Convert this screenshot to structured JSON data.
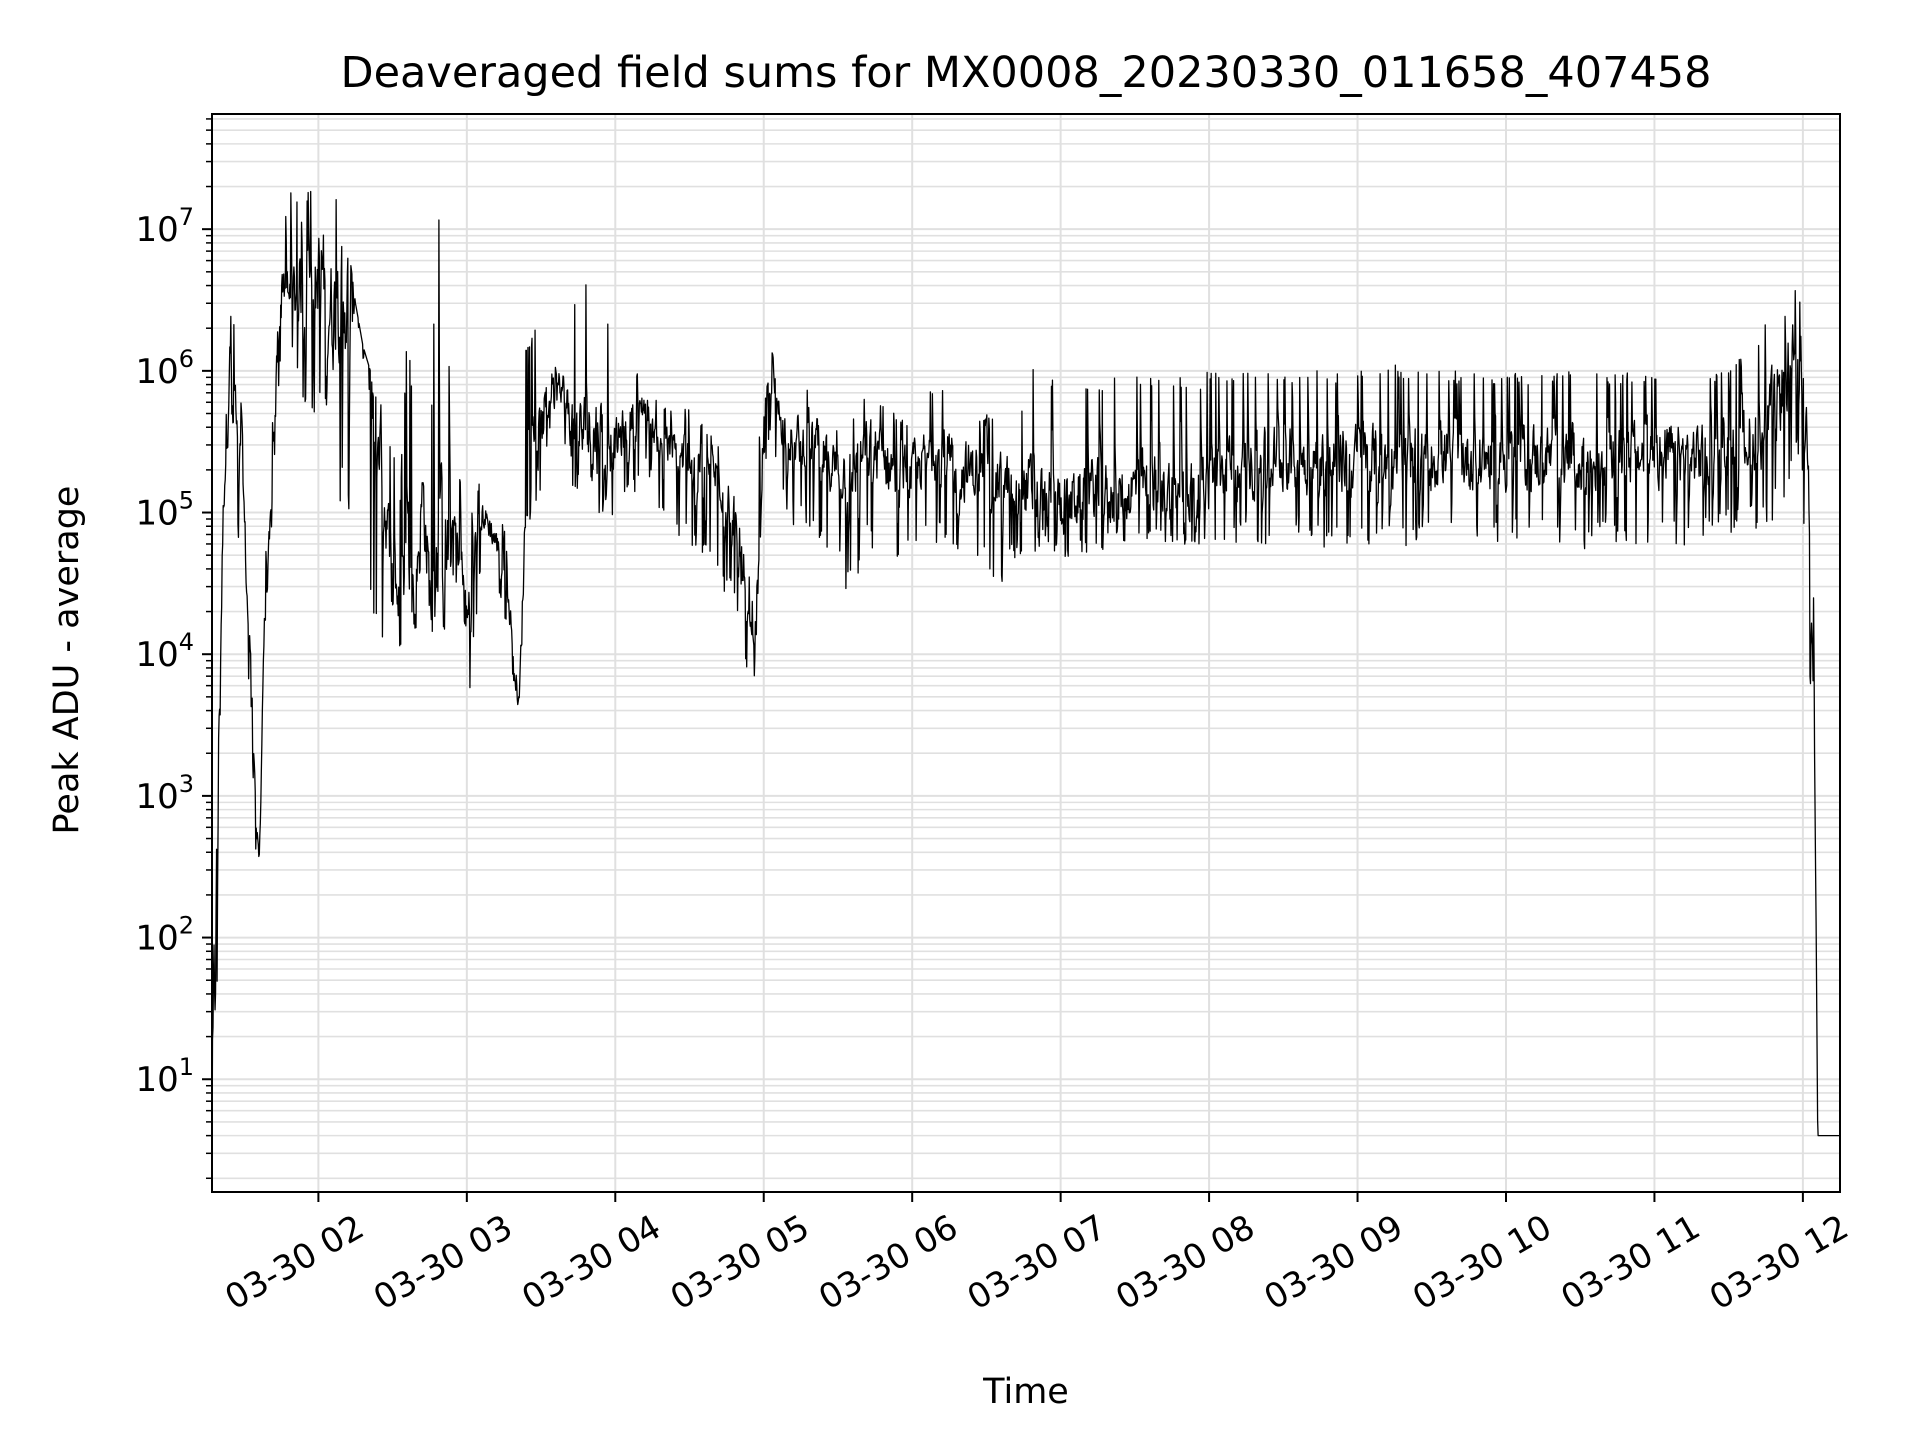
{
  "chart_data": {
    "type": "line",
    "title": "Deaveraged field sums for MX0008_20230330_011658_407458",
    "xlabel": "Time",
    "ylabel": "Peak ADU - average",
    "yscale": "log",
    "ylim": [
      1.6,
      65000000
    ],
    "xlim": [
      "03-30 01:17",
      "03-30 12:15"
    ],
    "x_tick_labels": [
      "03-30 02",
      "03-30 03",
      "03-30 04",
      "03-30 05",
      "03-30 06",
      "03-30 07",
      "03-30 08",
      "03-30 09",
      "03-30 10",
      "03-30 11",
      "03-30 12"
    ],
    "x_tick_hours": [
      2,
      3,
      4,
      5,
      6,
      7,
      8,
      9,
      10,
      11,
      12
    ],
    "y_tick_base": "10",
    "y_tick_exponents": [
      "1",
      "2",
      "3",
      "4",
      "5",
      "6",
      "7"
    ],
    "grid": true,
    "line_color": "#000000",
    "grid_color": "#e0e0e0",
    "series": [
      {
        "x_hours": [
          1.2833,
          1.31,
          1.33,
          1.36,
          1.38,
          1.4,
          1.42,
          1.44,
          1.46,
          1.48,
          1.5,
          1.52,
          1.55,
          1.58,
          1.6,
          1.63,
          1.65,
          1.67,
          1.7,
          1.72,
          1.74,
          1.76,
          1.78,
          1.8,
          1.82,
          1.84,
          1.86,
          1.88,
          1.9,
          1.92,
          1.95,
          1.98,
          2.02,
          2.06,
          2.1,
          2.15,
          2.2,
          2.25,
          2.3,
          2.35,
          2.4,
          2.45,
          2.5,
          2.55,
          2.6,
          2.65,
          2.7,
          2.75,
          2.8,
          2.85,
          2.9,
          2.95,
          3.0,
          3.05,
          3.1,
          3.15,
          3.2,
          3.25,
          3.3,
          3.35,
          3.4,
          3.45,
          3.5,
          3.6,
          3.7,
          3.8,
          3.9,
          4.0,
          4.1,
          4.2,
          4.3,
          4.4,
          4.5,
          4.6,
          4.7,
          4.8,
          4.85,
          4.9,
          4.93,
          4.96,
          5.0,
          5.05,
          5.1,
          5.2,
          5.3,
          5.4,
          5.5,
          5.6,
          5.7,
          5.8,
          5.9,
          6.0,
          6.1,
          6.2,
          6.3,
          6.4,
          6.5,
          6.6,
          6.7,
          6.8,
          6.9,
          7.0,
          7.1,
          7.2,
          7.3,
          7.4,
          7.5,
          7.6,
          7.7,
          7.8,
          7.9,
          8.0,
          8.25,
          8.5,
          8.75,
          9.0,
          9.25,
          9.5,
          9.75,
          10.0,
          10.25,
          10.5,
          10.75,
          11.0,
          11.25,
          11.5,
          11.75,
          11.9,
          11.97,
          12.0,
          12.03,
          12.07,
          12.1,
          12.12,
          12.15,
          12.2,
          12.25
        ],
        "y_mid": [
          4,
          180,
          5000,
          150000,
          400000,
          1500000,
          300000,
          500000,
          150000,
          400000,
          80000,
          20000,
          8000,
          600,
          300,
          15000,
          25000,
          60000,
          200000,
          1500000,
          3000000,
          5000000,
          4000000,
          2500000,
          6000000,
          3000000,
          5000000,
          4000000,
          3000000,
          5000000,
          3000000,
          4000000,
          6000000,
          3000000,
          2500000,
          4000000,
          3000000,
          6000000,
          4000000,
          1000000,
          500000,
          100000,
          40000,
          20000,
          60000,
          30000,
          150000,
          25000,
          80000,
          40000,
          100000,
          50000,
          15000,
          60000,
          100000,
          80000,
          60000,
          40000,
          15000,
          4000,
          200000,
          300000,
          400000,
          1200000,
          400000,
          350000,
          350000,
          300000,
          450000,
          600000,
          300000,
          250000,
          250000,
          200000,
          180000,
          100000,
          30000,
          15000,
          8000,
          50000,
          500000,
          1000000,
          500000,
          300000,
          350000,
          250000,
          200000,
          200000,
          300000,
          250000,
          180000,
          200000,
          250000,
          300000,
          180000,
          200000,
          200000,
          160000,
          160000,
          140000,
          120000,
          120000,
          130000,
          150000,
          140000,
          130000,
          150000,
          160000,
          150000,
          140000,
          150000,
          160000,
          220000,
          250000,
          230000,
          240000,
          230000,
          250000,
          240000,
          240000,
          250000,
          230000,
          240000,
          260000,
          250000,
          300000,
          400000,
          1000000,
          1500000,
          900000,
          300000,
          10000,
          4,
          4,
          4,
          4,
          4
        ],
        "y_low": [
          1.6,
          4,
          1000,
          80000,
          150000,
          200000,
          80000,
          100000,
          60000,
          100000,
          20000,
          8000,
          3000,
          300,
          200,
          8000,
          12000,
          20000,
          60000,
          500000,
          1000000,
          1500000,
          800000,
          700000,
          1000000,
          600000,
          1000000,
          800000,
          600000,
          500000,
          600000,
          400000,
          500000,
          300000,
          200000,
          100000,
          50000,
          20000,
          10000,
          12000,
          8000,
          15000,
          20000,
          10000,
          30000,
          12000,
          60000,
          8000,
          20000,
          15000,
          40000,
          20000,
          2500,
          12000,
          50000,
          40000,
          30000,
          20000,
          8000,
          2500,
          80000,
          100000,
          150000,
          600000,
          150000,
          100000,
          100000,
          90000,
          120000,
          200000,
          100000,
          60000,
          60000,
          40000,
          30000,
          20000,
          12000,
          5500,
          5000,
          20000,
          200000,
          300000,
          150000,
          80000,
          80000,
          50000,
          40000,
          20000,
          60000,
          40000,
          30000,
          50000,
          60000,
          60000,
          40000,
          35000,
          35000,
          30000,
          45000,
          50000,
          55000,
          50000,
          45000,
          50000,
          55000,
          60000,
          55000,
          55000,
          60000,
          55000,
          60000,
          60000,
          60000,
          55000,
          55000,
          60000,
          55000,
          55000,
          60000,
          60000,
          60000,
          55000,
          60000,
          55000,
          60000,
          70000,
          80000,
          100000,
          200000,
          100000,
          30000,
          1000,
          4,
          4,
          4,
          4,
          4
        ],
        "y_high": [
          150000,
          900,
          50000,
          500000,
          6500000,
          5000000,
          1500000,
          4000000,
          700000,
          600000,
          200000,
          50000,
          15000,
          1000,
          500,
          40000,
          60000,
          150000,
          800000,
          6000000,
          12000000,
          20000000,
          15000000,
          12000000,
          22000000,
          12000000,
          20000000,
          15000000,
          10000000,
          18000000,
          20000000,
          25000000,
          27000000,
          28000000,
          20000000,
          15000000,
          8000000,
          3000000,
          1500000,
          1000000,
          800000,
          400000,
          300000,
          150000,
          2500000,
          300000,
          1500000,
          300000,
          12000000,
          12000000,
          400000,
          200000,
          100000,
          120000,
          200000,
          150000,
          120000,
          80000,
          30000,
          8000,
          1800000,
          2000000,
          2200000,
          1600000,
          3000000,
          4000000,
          9000000,
          800000,
          1000000,
          1000000,
          600000,
          500000,
          600000,
          400000,
          300000,
          200000,
          60000,
          40000,
          20000,
          200000,
          1500000,
          1500000,
          900000,
          800000,
          800000,
          600000,
          400000,
          500000,
          800000,
          600000,
          500000,
          400000,
          700000,
          800000,
          500000,
          500000,
          500000,
          400000,
          400000,
          1300000,
          1000000,
          900000,
          800000,
          800000,
          900000,
          900000,
          1000000,
          900000,
          1000000,
          1000000,
          900000,
          1000000,
          1000000,
          1000000,
          1000000,
          1000000,
          1100000,
          1000000,
          1000000,
          1000000,
          950000,
          1000000,
          1000000,
          950000,
          1000000,
          1000000,
          2200000,
          3000000,
          4500000,
          2000000,
          400000,
          50000,
          4,
          4,
          4,
          4,
          4
        ]
      }
    ]
  }
}
